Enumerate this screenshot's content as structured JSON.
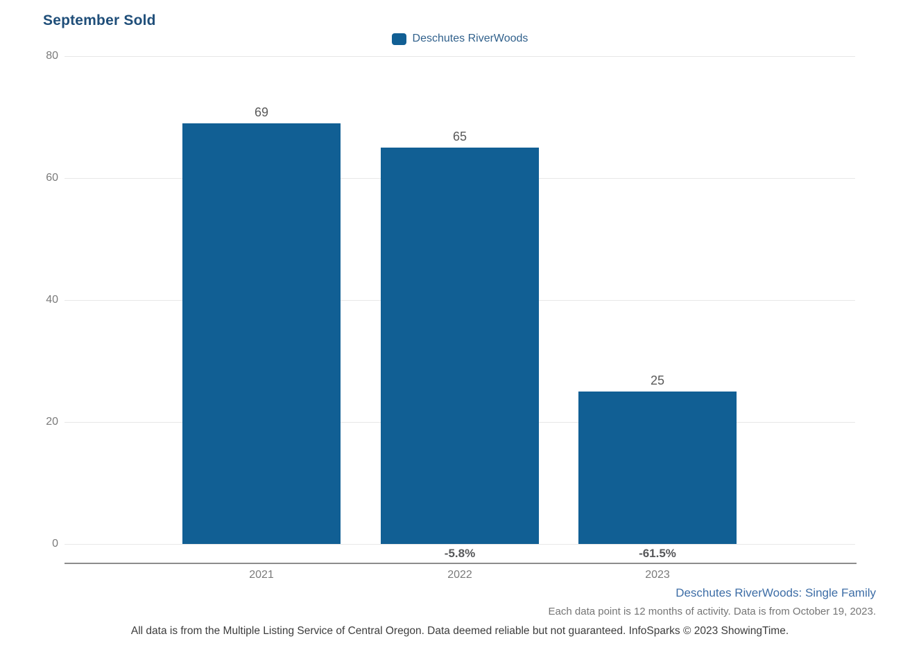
{
  "title": "September Sold",
  "legend": {
    "label": "Deschutes RiverWoods"
  },
  "chart_data": {
    "type": "bar",
    "title": "September Sold",
    "categories": [
      "2021",
      "2022",
      "2023"
    ],
    "series": [
      {
        "name": "Deschutes RiverWoods",
        "values": [
          69,
          65,
          25
        ]
      }
    ],
    "value_labels": [
      "69",
      "65",
      "25"
    ],
    "pct_change_labels": [
      "",
      "-5.8%",
      "-61.5%"
    ],
    "ylabel": "",
    "xlabel": "",
    "ylim": [
      0,
      80
    ],
    "yticks": [
      0,
      20,
      40,
      60,
      80
    ],
    "grid": true,
    "legend_position": "top-center",
    "bar_color": "#115f94"
  },
  "footer": {
    "series_note": "Deschutes RiverWoods: Single Family",
    "data_note": "Each data point is 12 months of activity. Data is from October 19, 2023.",
    "disclaimer": "All data is from the Multiple Listing Service of Central Oregon. Data deemed reliable but not guaranteed. InfoSparks © 2023 ShowingTime."
  },
  "colors": {
    "title": "#1f4e79",
    "bar": "#115f94",
    "legend_text": "#31618c",
    "tick_text": "#7a7a7a",
    "value_text": "#595959",
    "pct_text": "#57585a",
    "gridline": "#e7e7e7",
    "axis_line": "#8c8c8c",
    "series_note_text": "#3d6da6",
    "data_note_text": "#757575",
    "disclaimer_text": "#3c3c3c"
  }
}
